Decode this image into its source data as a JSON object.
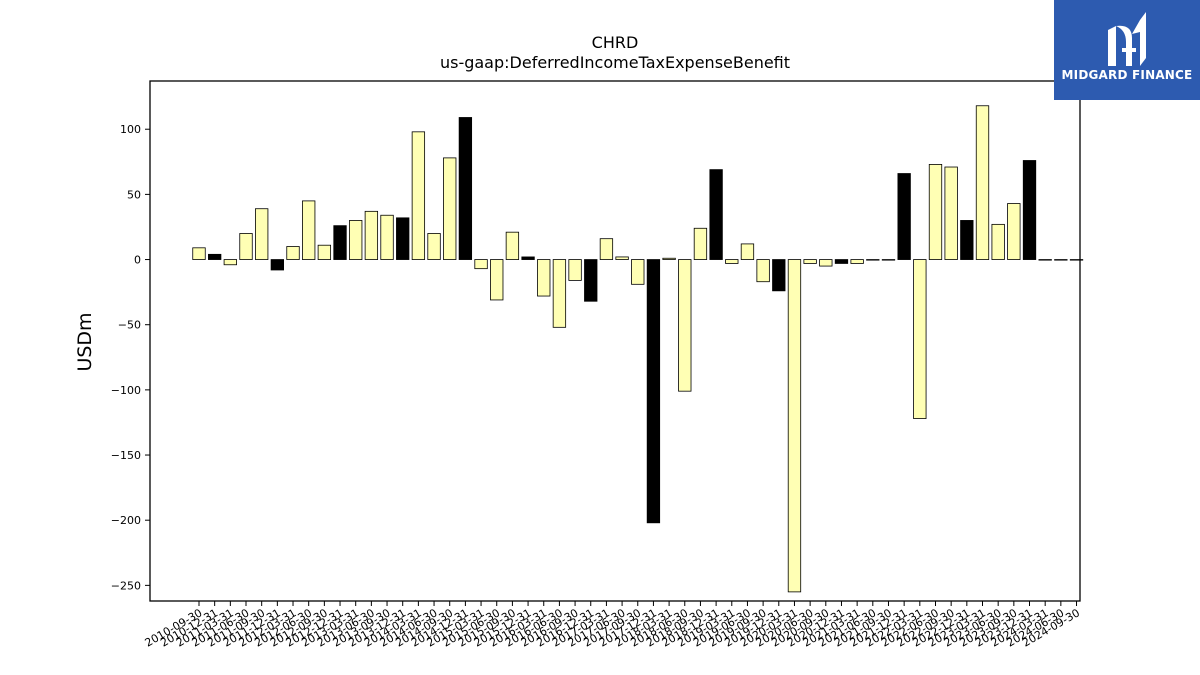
{
  "brand": {
    "name": "MIDGARD FINANCE",
    "logo_icon": "midgard-m-logo-icon",
    "background": "#2d5bb0"
  },
  "chart_data": {
    "type": "bar",
    "title": "CHRD",
    "subtitle": "us-gaap:DeferredIncomeTaxExpenseBenefit",
    "xlabel": "",
    "ylabel": "USDm",
    "ylim": [
      -262,
      137
    ],
    "yticks": [
      100,
      50,
      0,
      -50,
      -100,
      -150,
      -200,
      -250
    ],
    "grid": false,
    "colors": {
      "quarterly": "#ffffb4",
      "annual": "#000000",
      "edge": "#000000"
    },
    "categories": [
      "2010-09-30",
      "2010-12-31",
      "2011-03-31",
      "2011-06-30",
      "2011-09-30",
      "2011-12-31",
      "2012-03-31",
      "2012-06-30",
      "2012-09-30",
      "2012-12-31",
      "2013-03-31",
      "2013-06-30",
      "2013-09-30",
      "2013-12-31",
      "2014-03-31",
      "2014-06-30",
      "2014-09-30",
      "2014-12-31",
      "2015-03-31",
      "2015-06-30",
      "2015-09-30",
      "2015-12-31",
      "2016-03-31",
      "2016-06-30",
      "2016-09-30",
      "2016-12-31",
      "2017-03-31",
      "2017-06-30",
      "2017-09-30",
      "2017-12-31",
      "2018-03-31",
      "2018-06-30",
      "2018-09-30",
      "2018-12-31",
      "2019-03-31",
      "2019-06-30",
      "2019-09-30",
      "2019-12-31",
      "2020-03-31",
      "2020-06-30",
      "2020-09-30",
      "2020-12-31",
      "2021-03-31",
      "2021-06-30",
      "2021-09-30",
      "2021-12-31",
      "2022-03-31",
      "2022-06-30",
      "2022-09-30",
      "2022-12-31",
      "2023-03-31",
      "2023-06-30",
      "2023-09-30",
      "2023-12-31",
      "2024-03-31",
      "2024-06-30",
      "2024-09-30"
    ],
    "values": [
      9,
      4,
      -4,
      20,
      39,
      -8,
      10,
      45,
      11,
      26,
      30,
      37,
      34,
      32,
      98,
      20,
      78,
      109,
      -7,
      -31,
      21,
      2,
      -28,
      -52,
      -16,
      -32,
      16,
      2,
      -19,
      -202,
      1,
      -101,
      24,
      69,
      -3,
      12,
      -17,
      -24,
      -255,
      -3,
      -5,
      -3,
      -3,
      0,
      0,
      66,
      -122,
      73,
      71,
      30,
      118,
      27,
      43,
      76,
      0,
      0,
      0
    ],
    "annual": [
      false,
      true,
      false,
      false,
      false,
      true,
      false,
      false,
      false,
      true,
      false,
      false,
      false,
      true,
      false,
      false,
      false,
      true,
      false,
      false,
      false,
      true,
      false,
      false,
      false,
      true,
      false,
      false,
      false,
      true,
      false,
      false,
      false,
      true,
      false,
      false,
      false,
      true,
      false,
      false,
      false,
      true,
      false,
      false,
      false,
      true,
      false,
      false,
      false,
      true,
      false,
      false,
      false,
      true,
      false,
      false,
      false
    ],
    "x_tick_labels": [
      "2010-09-30",
      "2010-12-31",
      "2011-03-31",
      "2011-06-30",
      "2011-09-30",
      "2011-12-31",
      "2012-03-31",
      "2012-06-30",
      "2012-09-30",
      "2012-12-31",
      "2013-03-31",
      "2013-06-30",
      "2013-09-30",
      "2013-12-31",
      "2014-03-31",
      "2014-06-30",
      "2014-09-30",
      "2014-12-31",
      "2015-03-31",
      "2015-06-30",
      "2015-09-30",
      "2015-12-31",
      "2016-03-31",
      "2016-06-30",
      "2016-09-30",
      "2016-12-31",
      "2017-03-31",
      "2017-06-30",
      "2017-09-30",
      "2017-12-31",
      "2018-03-31",
      "2018-06-30",
      "2018-09-30",
      "2018-12-31",
      "2019-03-31",
      "2019-06-30",
      "2019-09-30",
      "2019-12-31",
      "2020-03-31",
      "2020-06-30",
      "2020-09-30",
      "2020-12-31",
      "2021-03-31",
      "2021-06-30",
      "2021-09-30",
      "2021-12-31",
      "2022-03-31",
      "2022-06-30",
      "2022-09-30",
      "2022-12-31",
      "2023-03-31",
      "2023-06-30",
      "2023-09-30",
      "2023-12-31",
      "2024-03-31",
      "2024-06-30",
      "2024-09-30"
    ]
  }
}
